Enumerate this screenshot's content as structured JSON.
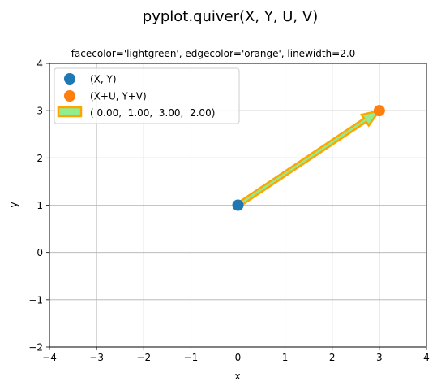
{
  "chart_data": {
    "type": "quiver",
    "suptitle": "pyplot.quiver(X, Y, U, V)",
    "title": "facecolor='lightgreen', edgecolor='orange', linewidth=2.0",
    "xlabel": "x",
    "ylabel": "y",
    "xlim": [
      -4,
      4
    ],
    "ylim": [
      -2,
      4
    ],
    "xticks": [
      -4,
      -3,
      -2,
      -1,
      0,
      1,
      2,
      3,
      4
    ],
    "yticks": [
      -2,
      -1,
      0,
      1,
      2,
      3,
      4
    ],
    "xtick_labels": [
      "−4",
      "−3",
      "−2",
      "−1",
      "0",
      "1",
      "2",
      "3",
      "4"
    ],
    "ytick_labels": [
      "−2",
      "−1",
      "0",
      "1",
      "2",
      "3",
      "4"
    ],
    "grid": true,
    "legend_position": "upper-left",
    "vector": {
      "X": 0.0,
      "Y": 1.0,
      "U": 3.0,
      "V": 2.0
    },
    "points": [
      {
        "label": "(X, Y)",
        "x": 0.0,
        "y": 1.0,
        "color": "#1f77b4"
      },
      {
        "label": "(X+U, Y+V)",
        "x": 3.0,
        "y": 3.0,
        "color": "#ff7f0e"
      }
    ],
    "arrow": {
      "label": "( 0.00,  1.00,  3.00,  2.00)",
      "facecolor": "#90ee90",
      "edgecolor": "#ffa500"
    }
  }
}
